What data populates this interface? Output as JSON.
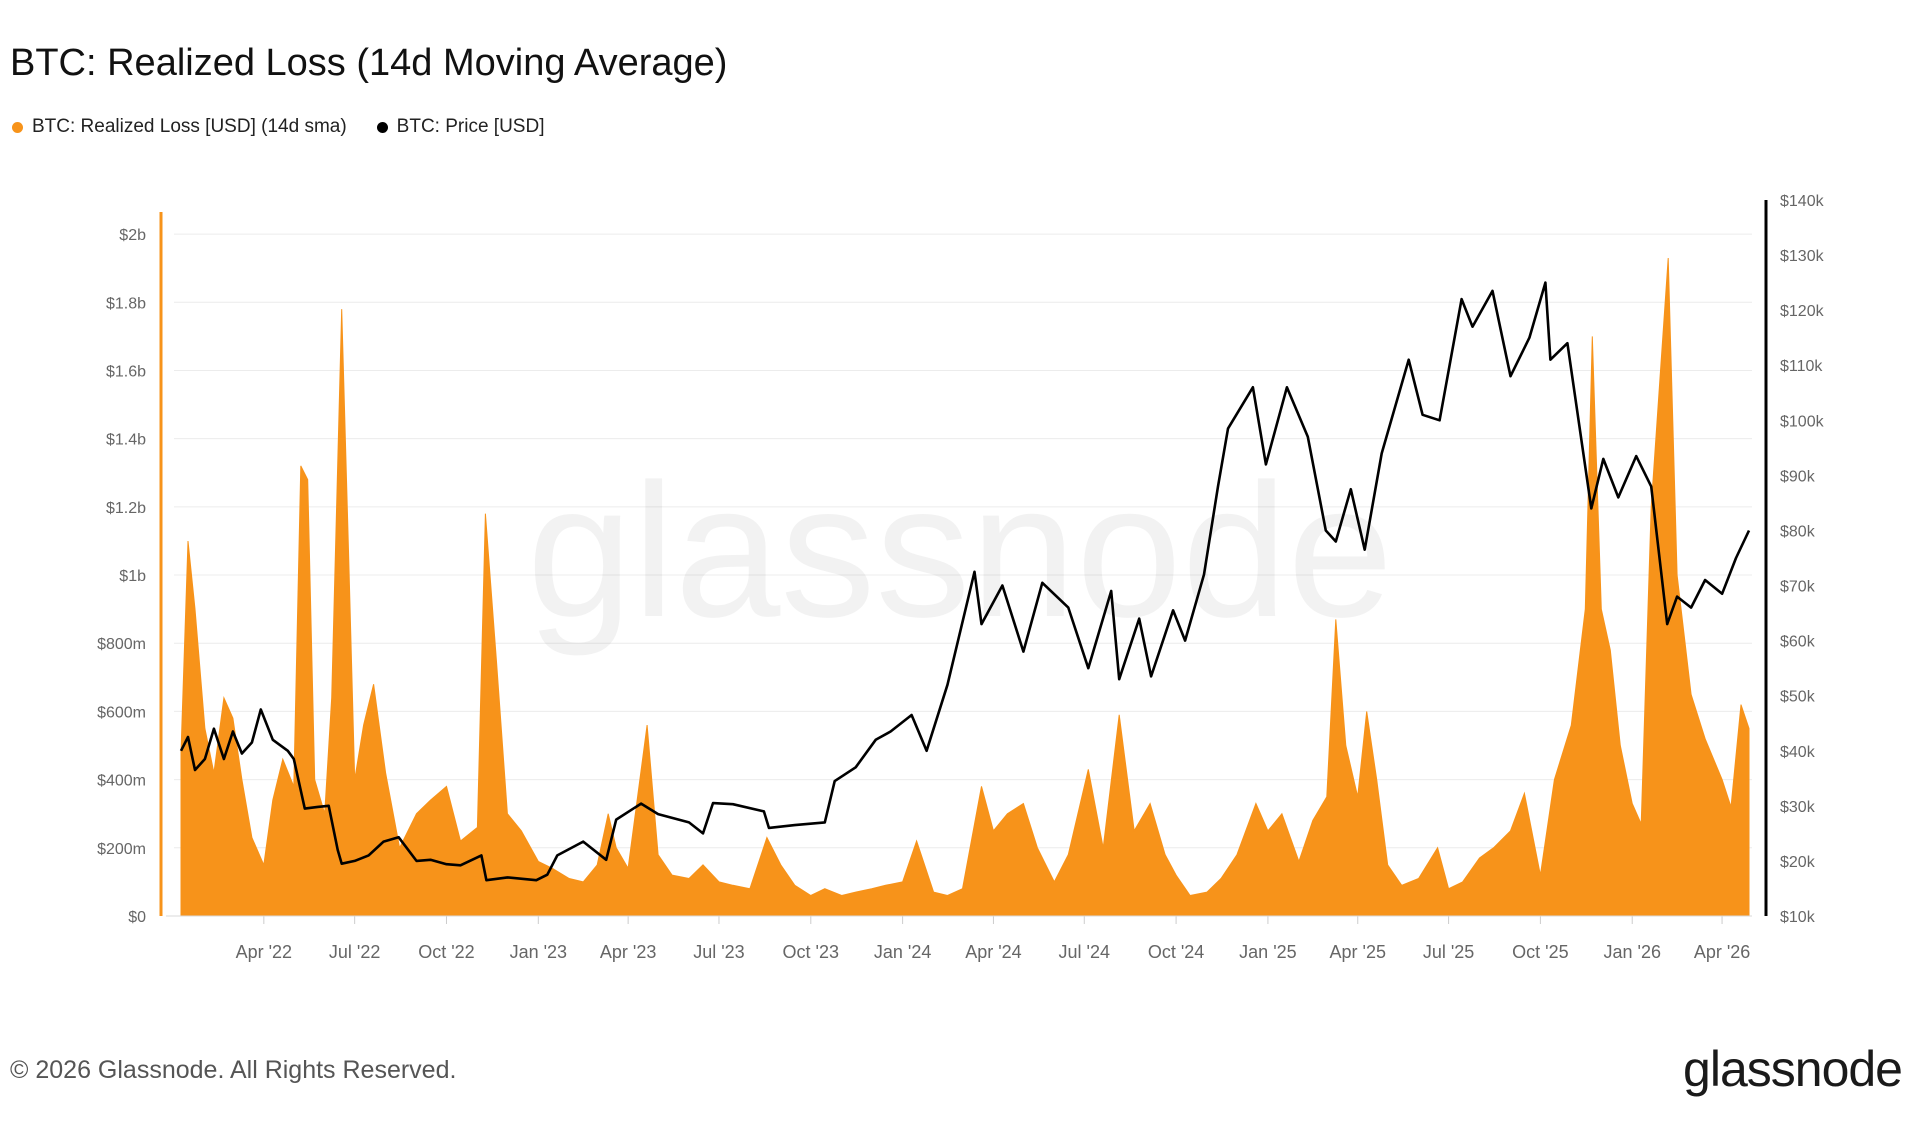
{
  "title": "BTC: Realized Loss (14d Moving Average)",
  "footer": "© 2026 Glassnode. All Rights Reserved.",
  "logo": "glassnode",
  "watermark": "glassnode",
  "colors": {
    "loss": "#f7931a",
    "price": "#000000",
    "grid": "#ececec",
    "axis_text": "#666666"
  },
  "chart_data": {
    "type": "area",
    "title": "BTC: Realized Loss (14d Moving Average)",
    "legend_position": "top-left",
    "grid": true,
    "x_range": [
      "2022-01-01",
      "2026-05-01"
    ],
    "x_ticks": [
      "2022-04-01",
      "2022-07-01",
      "2022-10-01",
      "2023-01-01",
      "2023-04-01",
      "2023-07-01",
      "2023-10-01",
      "2024-01-01",
      "2024-04-01",
      "2024-07-01",
      "2024-10-01",
      "2025-01-01",
      "2025-04-01",
      "2025-07-01",
      "2025-10-01",
      "2026-01-01",
      "2026-04-01"
    ],
    "x_tick_labels": [
      "Apr '22",
      "Jul '22",
      "Oct '22",
      "Jan '23",
      "Apr '23",
      "Jul '23",
      "Oct '23",
      "Jan '24",
      "Apr '24",
      "Jul '24",
      "Oct '24",
      "Jan '25",
      "Apr '25",
      "Jul '25",
      "Oct '25",
      "Jan '26",
      "Apr '26"
    ],
    "y_left": {
      "range": [
        0,
        2100000000
      ],
      "ticks": [
        0,
        200000000,
        400000000,
        600000000,
        800000000,
        1000000000,
        1200000000,
        1400000000,
        1600000000,
        1800000000,
        2000000000
      ],
      "tick_labels": [
        "$0",
        "$200m",
        "$400m",
        "$600m",
        "$800m",
        "$1b",
        "$1.2b",
        "$1.4b",
        "$1.6b",
        "$1.8b",
        "$2b"
      ]
    },
    "y_right": {
      "range": [
        10000,
        140000
      ],
      "ticks": [
        10000,
        20000,
        30000,
        40000,
        50000,
        60000,
        70000,
        80000,
        90000,
        100000,
        110000,
        120000,
        130000,
        140000
      ],
      "tick_labels": [
        "$10k",
        "$20k",
        "$30k",
        "$40k",
        "$50k",
        "$60k",
        "$70k",
        "$80k",
        "$90k",
        "$100k",
        "$110k",
        "$120k",
        "$130k",
        "$140k"
      ]
    },
    "series": [
      {
        "name": "BTC: Realized Loss [USD] (14d sma)",
        "axis": "left",
        "points": [
          [
            "2022-01-08",
            480000000
          ],
          [
            "2022-01-15",
            1100000000
          ],
          [
            "2022-01-22",
            900000000
          ],
          [
            "2022-02-01",
            550000000
          ],
          [
            "2022-02-10",
            420000000
          ],
          [
            "2022-02-20",
            640000000
          ],
          [
            "2022-03-01",
            580000000
          ],
          [
            "2022-03-10",
            400000000
          ],
          [
            "2022-03-20",
            230000000
          ],
          [
            "2022-04-01",
            150000000
          ],
          [
            "2022-04-10",
            340000000
          ],
          [
            "2022-04-20",
            460000000
          ],
          [
            "2022-05-01",
            380000000
          ],
          [
            "2022-05-08",
            1320000000
          ],
          [
            "2022-05-15",
            1280000000
          ],
          [
            "2022-05-22",
            400000000
          ],
          [
            "2022-06-01",
            300000000
          ],
          [
            "2022-06-08",
            640000000
          ],
          [
            "2022-06-18",
            1780000000
          ],
          [
            "2022-06-25",
            1050000000
          ],
          [
            "2022-07-01",
            400000000
          ],
          [
            "2022-07-10",
            560000000
          ],
          [
            "2022-07-20",
            680000000
          ],
          [
            "2022-08-01",
            420000000
          ],
          [
            "2022-08-15",
            200000000
          ],
          [
            "2022-09-01",
            300000000
          ],
          [
            "2022-09-15",
            340000000
          ],
          [
            "2022-10-01",
            380000000
          ],
          [
            "2022-10-15",
            220000000
          ],
          [
            "2022-11-01",
            260000000
          ],
          [
            "2022-11-09",
            1180000000
          ],
          [
            "2022-11-20",
            750000000
          ],
          [
            "2022-12-01",
            300000000
          ],
          [
            "2022-12-15",
            250000000
          ],
          [
            "2023-01-01",
            160000000
          ],
          [
            "2023-01-15",
            140000000
          ],
          [
            "2023-02-01",
            110000000
          ],
          [
            "2023-02-15",
            100000000
          ],
          [
            "2023-03-01",
            150000000
          ],
          [
            "2023-03-12",
            300000000
          ],
          [
            "2023-03-20",
            200000000
          ],
          [
            "2023-04-01",
            140000000
          ],
          [
            "2023-04-20",
            560000000
          ],
          [
            "2023-05-01",
            180000000
          ],
          [
            "2023-05-15",
            120000000
          ],
          [
            "2023-06-01",
            110000000
          ],
          [
            "2023-06-15",
            150000000
          ],
          [
            "2023-07-01",
            100000000
          ],
          [
            "2023-07-15",
            90000000
          ],
          [
            "2023-08-01",
            80000000
          ],
          [
            "2023-08-18",
            230000000
          ],
          [
            "2023-09-01",
            150000000
          ],
          [
            "2023-09-15",
            90000000
          ],
          [
            "2023-10-01",
            60000000
          ],
          [
            "2023-10-15",
            80000000
          ],
          [
            "2023-11-01",
            60000000
          ],
          [
            "2023-11-15",
            70000000
          ],
          [
            "2023-12-01",
            80000000
          ],
          [
            "2023-12-15",
            90000000
          ],
          [
            "2024-01-01",
            100000000
          ],
          [
            "2024-01-15",
            220000000
          ],
          [
            "2024-02-01",
            70000000
          ],
          [
            "2024-02-15",
            60000000
          ],
          [
            "2024-03-01",
            80000000
          ],
          [
            "2024-03-20",
            380000000
          ],
          [
            "2024-04-01",
            250000000
          ],
          [
            "2024-04-15",
            300000000
          ],
          [
            "2024-05-01",
            330000000
          ],
          [
            "2024-05-15",
            200000000
          ],
          [
            "2024-06-01",
            100000000
          ],
          [
            "2024-06-15",
            180000000
          ],
          [
            "2024-07-05",
            430000000
          ],
          [
            "2024-07-20",
            200000000
          ],
          [
            "2024-08-05",
            590000000
          ],
          [
            "2024-08-20",
            250000000
          ],
          [
            "2024-09-05",
            330000000
          ],
          [
            "2024-09-20",
            180000000
          ],
          [
            "2024-10-01",
            120000000
          ],
          [
            "2024-10-15",
            60000000
          ],
          [
            "2024-11-01",
            70000000
          ],
          [
            "2024-11-15",
            110000000
          ],
          [
            "2024-12-01",
            180000000
          ],
          [
            "2024-12-20",
            330000000
          ],
          [
            "2025-01-01",
            250000000
          ],
          [
            "2025-01-15",
            300000000
          ],
          [
            "2025-02-01",
            160000000
          ],
          [
            "2025-02-15",
            280000000
          ],
          [
            "2025-03-01",
            350000000
          ],
          [
            "2025-03-10",
            870000000
          ],
          [
            "2025-03-20",
            500000000
          ],
          [
            "2025-04-01",
            350000000
          ],
          [
            "2025-04-10",
            600000000
          ],
          [
            "2025-04-20",
            400000000
          ],
          [
            "2025-05-01",
            150000000
          ],
          [
            "2025-05-15",
            90000000
          ],
          [
            "2025-06-01",
            110000000
          ],
          [
            "2025-06-20",
            200000000
          ],
          [
            "2025-07-01",
            80000000
          ],
          [
            "2025-07-15",
            100000000
          ],
          [
            "2025-08-01",
            170000000
          ],
          [
            "2025-08-15",
            200000000
          ],
          [
            "2025-09-01",
            250000000
          ],
          [
            "2025-09-15",
            360000000
          ],
          [
            "2025-10-01",
            120000000
          ],
          [
            "2025-10-15",
            400000000
          ],
          [
            "2025-11-01",
            560000000
          ],
          [
            "2025-11-15",
            900000000
          ],
          [
            "2025-11-22",
            1700000000
          ],
          [
            "2025-12-01",
            900000000
          ],
          [
            "2025-12-10",
            780000000
          ],
          [
            "2025-12-20",
            500000000
          ],
          [
            "2026-01-01",
            330000000
          ],
          [
            "2026-01-10",
            270000000
          ],
          [
            "2026-01-20",
            1200000000
          ],
          [
            "2026-02-06",
            1930000000
          ],
          [
            "2026-02-15",
            1000000000
          ],
          [
            "2026-03-01",
            650000000
          ],
          [
            "2026-03-15",
            520000000
          ],
          [
            "2026-04-01",
            400000000
          ],
          [
            "2026-04-10",
            320000000
          ],
          [
            "2026-04-20",
            620000000
          ],
          [
            "2026-04-28",
            550000000
          ]
        ]
      },
      {
        "name": "BTC: Price [USD]",
        "axis": "right",
        "points": [
          [
            "2022-01-08",
            40000
          ],
          [
            "2022-01-15",
            42500
          ],
          [
            "2022-01-22",
            36500
          ],
          [
            "2022-02-01",
            38500
          ],
          [
            "2022-02-10",
            44000
          ],
          [
            "2022-02-20",
            38500
          ],
          [
            "2022-03-01",
            43500
          ],
          [
            "2022-03-10",
            39500
          ],
          [
            "2022-03-20",
            41500
          ],
          [
            "2022-03-29",
            47500
          ],
          [
            "2022-04-10",
            42000
          ],
          [
            "2022-04-25",
            40000
          ],
          [
            "2022-05-01",
            38500
          ],
          [
            "2022-05-12",
            29500
          ],
          [
            "2022-05-25",
            29800
          ],
          [
            "2022-06-05",
            30000
          ],
          [
            "2022-06-14",
            22000
          ],
          [
            "2022-06-18",
            19500
          ],
          [
            "2022-07-01",
            20000
          ],
          [
            "2022-07-15",
            21000
          ],
          [
            "2022-07-30",
            23500
          ],
          [
            "2022-08-14",
            24300
          ],
          [
            "2022-09-01",
            20000
          ],
          [
            "2022-09-15",
            20200
          ],
          [
            "2022-10-01",
            19400
          ],
          [
            "2022-10-15",
            19200
          ],
          [
            "2022-11-05",
            21000
          ],
          [
            "2022-11-10",
            16500
          ],
          [
            "2022-12-01",
            17000
          ],
          [
            "2022-12-30",
            16500
          ],
          [
            "2023-01-10",
            17500
          ],
          [
            "2023-01-20",
            21000
          ],
          [
            "2023-02-15",
            23500
          ],
          [
            "2023-03-10",
            20200
          ],
          [
            "2023-03-20",
            27500
          ],
          [
            "2023-04-14",
            30400
          ],
          [
            "2023-05-01",
            28500
          ],
          [
            "2023-06-01",
            27000
          ],
          [
            "2023-06-15",
            25000
          ],
          [
            "2023-06-25",
            30500
          ],
          [
            "2023-07-15",
            30300
          ],
          [
            "2023-08-15",
            29000
          ],
          [
            "2023-08-20",
            26000
          ],
          [
            "2023-09-15",
            26500
          ],
          [
            "2023-10-15",
            27000
          ],
          [
            "2023-10-25",
            34500
          ],
          [
            "2023-11-15",
            37000
          ],
          [
            "2023-12-05",
            42000
          ],
          [
            "2023-12-20",
            43500
          ],
          [
            "2024-01-10",
            46500
          ],
          [
            "2024-01-25",
            40000
          ],
          [
            "2024-02-15",
            52000
          ],
          [
            "2024-03-13",
            72500
          ],
          [
            "2024-03-20",
            63000
          ],
          [
            "2024-04-10",
            70000
          ],
          [
            "2024-05-01",
            58000
          ],
          [
            "2024-05-20",
            70500
          ],
          [
            "2024-06-15",
            66000
          ],
          [
            "2024-07-05",
            55000
          ],
          [
            "2024-07-28",
            69000
          ],
          [
            "2024-08-05",
            53000
          ],
          [
            "2024-08-25",
            64000
          ],
          [
            "2024-09-06",
            53500
          ],
          [
            "2024-09-28",
            65500
          ],
          [
            "2024-10-10",
            60000
          ],
          [
            "2024-10-29",
            72000
          ],
          [
            "2024-11-12",
            88000
          ],
          [
            "2024-11-22",
            98500
          ],
          [
            "2024-12-17",
            106000
          ],
          [
            "2024-12-30",
            92000
          ],
          [
            "2025-01-20",
            106000
          ],
          [
            "2025-02-10",
            97000
          ],
          [
            "2025-02-28",
            80000
          ],
          [
            "2025-03-10",
            78000
          ],
          [
            "2025-03-25",
            87500
          ],
          [
            "2025-04-08",
            76500
          ],
          [
            "2025-04-25",
            94000
          ],
          [
            "2025-05-22",
            111000
          ],
          [
            "2025-06-05",
            101000
          ],
          [
            "2025-06-22",
            100000
          ],
          [
            "2025-07-14",
            122000
          ],
          [
            "2025-07-25",
            117000
          ],
          [
            "2025-08-14",
            123500
          ],
          [
            "2025-09-01",
            108000
          ],
          [
            "2025-09-20",
            115000
          ],
          [
            "2025-10-06",
            125000
          ],
          [
            "2025-10-11",
            111000
          ],
          [
            "2025-10-28",
            114000
          ],
          [
            "2025-11-21",
            84000
          ],
          [
            "2025-12-03",
            93000
          ],
          [
            "2025-12-18",
            86000
          ],
          [
            "2026-01-05",
            93500
          ],
          [
            "2026-01-20",
            88000
          ],
          [
            "2026-02-05",
            63000
          ],
          [
            "2026-02-15",
            68000
          ],
          [
            "2026-03-01",
            66000
          ],
          [
            "2026-03-15",
            71000
          ],
          [
            "2026-04-01",
            68500
          ],
          [
            "2026-04-15",
            75000
          ],
          [
            "2026-04-28",
            80000
          ]
        ]
      }
    ]
  }
}
